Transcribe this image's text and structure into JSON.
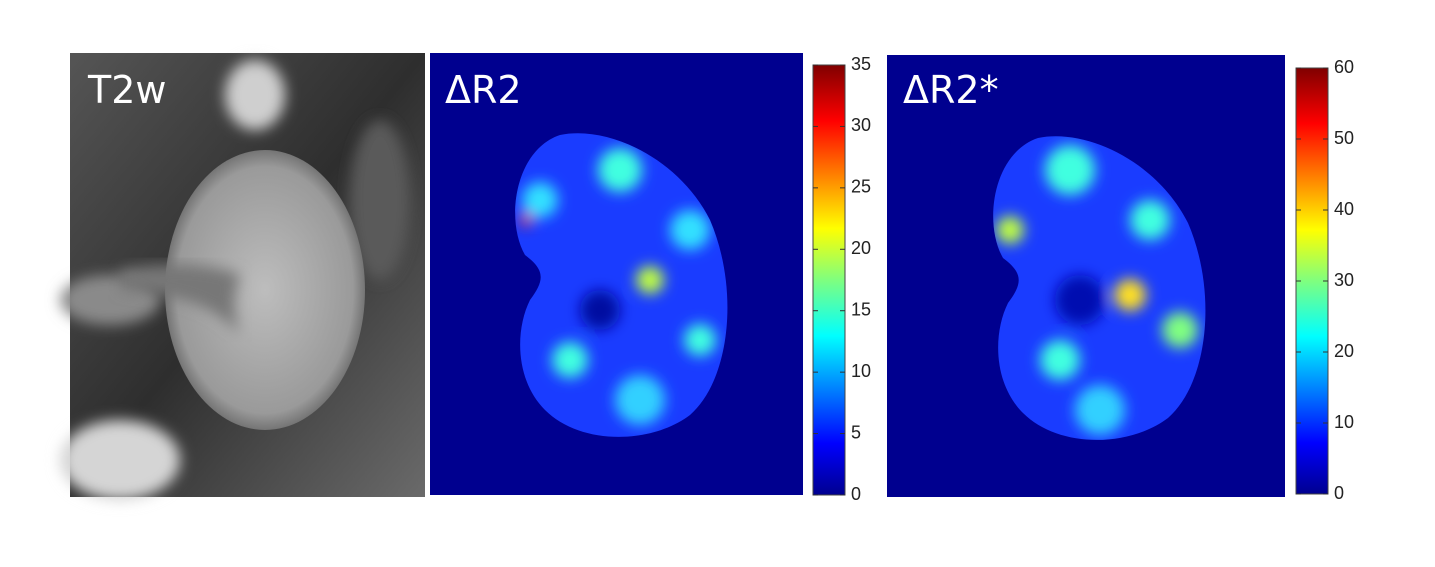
{
  "panels": [
    {
      "label": "T2w"
    },
    {
      "label": "ΔR2",
      "colorbar": {
        "lim": [
          0,
          35
        ],
        "ticks": [
          0,
          5,
          10,
          15,
          20,
          25,
          30,
          35
        ]
      }
    },
    {
      "label": "ΔR2*",
      "colorbar": {
        "lim": [
          0,
          60
        ],
        "ticks": [
          0,
          10,
          20,
          30,
          40,
          50,
          60
        ]
      }
    }
  ]
}
